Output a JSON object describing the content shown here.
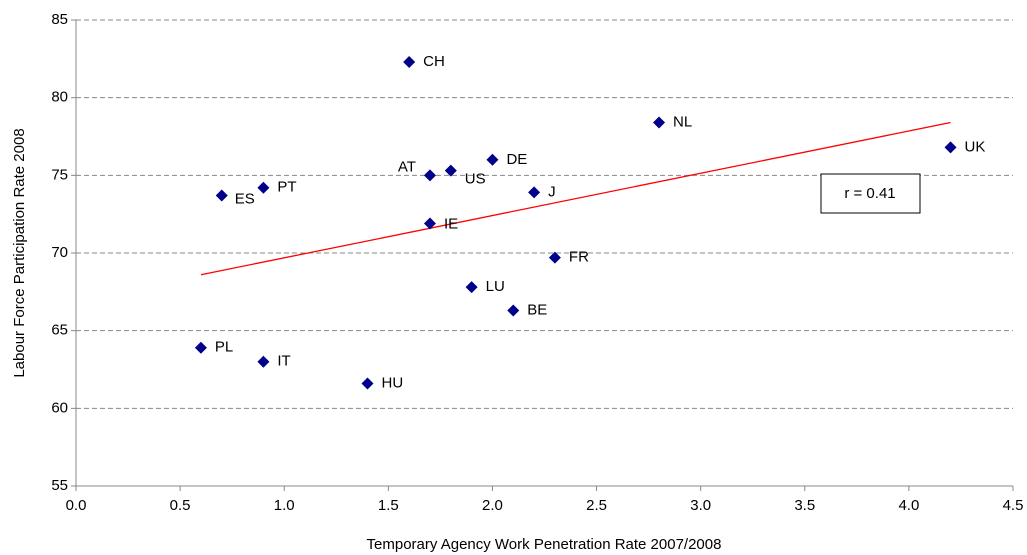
{
  "chart_data": {
    "type": "scatter",
    "x_label": "Temporary Agency Work Penetration Rate 2007/2008",
    "y_label": "Labour Force Participation Rate 2008",
    "annotation": "r = 0.41",
    "color": "#00008b",
    "point_labels": [
      "CH",
      "NL",
      "UK",
      "DE",
      "US",
      "AT",
      "J",
      "PT",
      "ES",
      "IE",
      "FR",
      "LU",
      "BE",
      "PL",
      "IT",
      "HU"
    ],
    "x": [
      1.6,
      2.8,
      4.2,
      2.0,
      1.8,
      1.7,
      2.2,
      0.9,
      0.7,
      1.7,
      2.3,
      1.9,
      2.1,
      0.6,
      0.9,
      1.4
    ],
    "y": [
      82.3,
      78.4,
      76.8,
      76.0,
      75.3,
      75.0,
      73.9,
      74.2,
      73.7,
      71.9,
      69.7,
      67.8,
      66.3,
      63.9,
      63.0,
      61.6
    ],
    "trendline": {
      "color": "#ff0000",
      "x": [
        0.6,
        4.2
      ],
      "y": [
        68.6,
        78.4
      ]
    },
    "xlim": [
      0,
      4.5
    ],
    "xticks": [
      {
        "value": 0,
        "label": "0.0"
      },
      0.5,
      {
        "value": 1,
        "label": "1.0"
      },
      1.5,
      {
        "value": 2,
        "label": "2.0"
      },
      2.5,
      {
        "value": 3,
        "label": "3.0"
      },
      3.5,
      {
        "value": 4,
        "label": "4.0"
      },
      4.5
    ],
    "ylim": [
      55,
      85
    ],
    "yticks": [
      55,
      60,
      65,
      70,
      75,
      80,
      85
    ],
    "grid": true
  }
}
